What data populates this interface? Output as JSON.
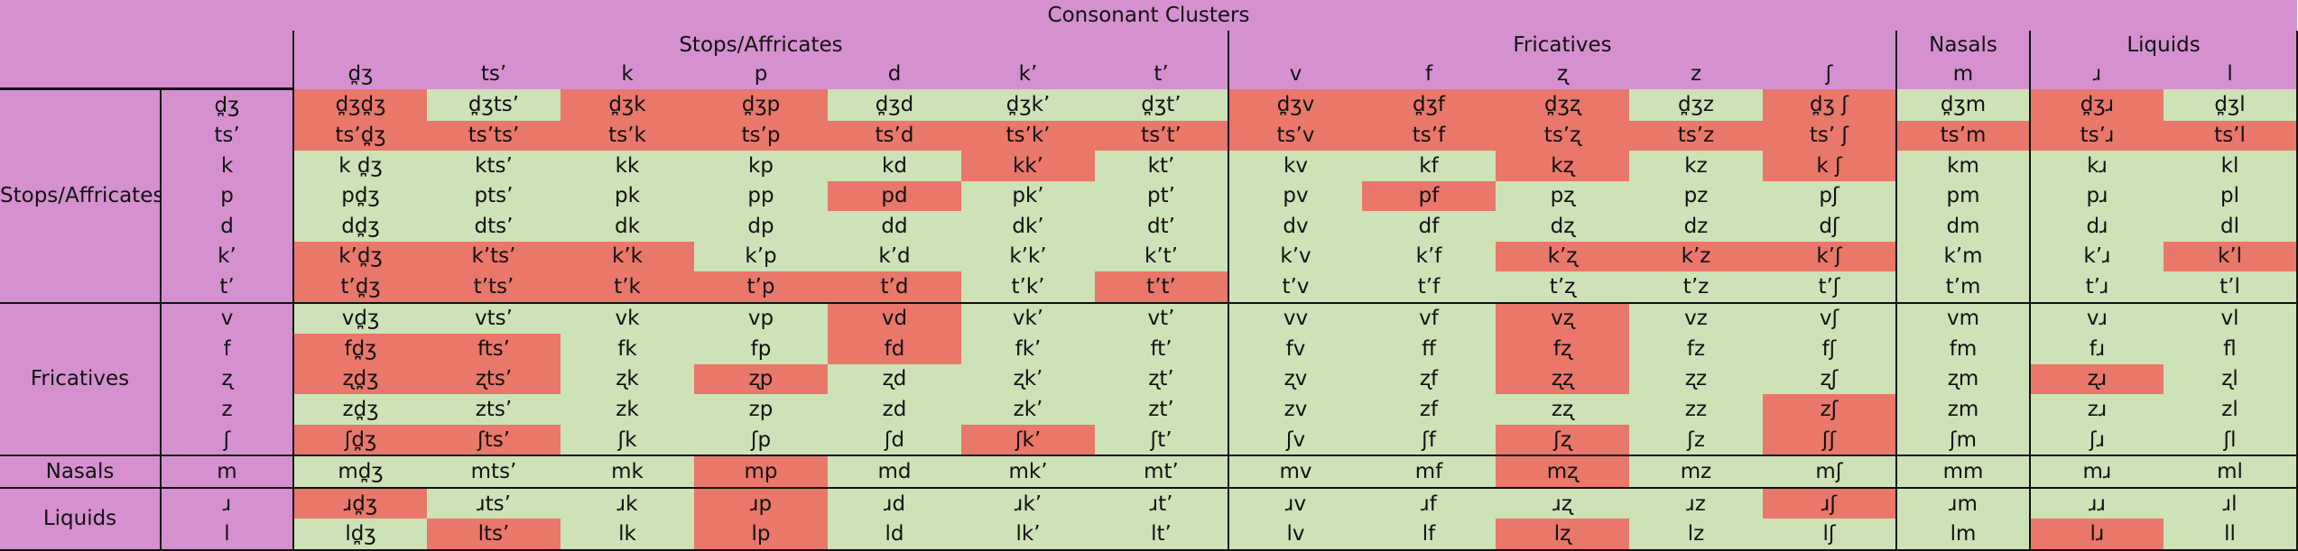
{
  "title": "Consonant Clusters",
  "col_groups": [
    {
      "label": "Stops/Affricates",
      "span": 7
    },
    {
      "label": "Fricatives",
      "span": 5
    },
    {
      "label": "Nasals",
      "span": 1
    },
    {
      "label": "Liquids",
      "span": 2
    }
  ],
  "cols": [
    "d̪ʒ",
    "ts’",
    "k",
    "p",
    "d",
    "k’",
    "t’",
    "v",
    "f",
    "ʐ",
    "z",
    "ʃ",
    "m",
    "ɹ",
    "l"
  ],
  "row_groups": [
    {
      "label": "Stops/Affricates",
      "rows": [
        {
          "label": "d̪ʒ",
          "cells": [
            "d̪ʒd̪ʒ",
            "d̪ʒts’",
            "d̪ʒk",
            "d̪ʒp",
            "d̪ʒd",
            "d̪ʒk’",
            "d̪ʒt’",
            "d̪ʒv",
            "d̪ʒf",
            "d̪ʒʐ",
            "d̪ʒz",
            "d̪ʒ ʃ",
            "d̪ʒm",
            "d̪ʒɹ",
            "d̪ʒl"
          ],
          "bad": [
            1,
            0,
            1,
            1,
            0,
            0,
            0,
            1,
            1,
            1,
            0,
            1,
            0,
            1,
            0
          ]
        },
        {
          "label": "ts’",
          "cells": [
            "ts’d̪ʒ",
            "ts’ts’",
            "ts’k",
            "ts’p",
            "ts’d",
            "ts’k’",
            "ts’t’",
            "ts’v",
            "ts’f",
            "ts’ʐ",
            "ts’z",
            "ts’ ʃ",
            "ts’m",
            "ts’ɹ",
            "ts’l"
          ],
          "bad": [
            1,
            1,
            1,
            1,
            1,
            1,
            1,
            1,
            1,
            1,
            1,
            1,
            1,
            1,
            1
          ]
        },
        {
          "label": "k",
          "cells": [
            "k d̪ʒ",
            "kts’",
            "kk",
            "kp",
            "kd",
            "kk’",
            "kt’",
            "kv",
            "kf",
            "kʐ",
            "kz",
            "k ʃ",
            "km",
            "kɹ",
            "kl"
          ],
          "bad": [
            0,
            0,
            0,
            0,
            0,
            1,
            0,
            0,
            0,
            1,
            0,
            1,
            0,
            0,
            0
          ]
        },
        {
          "label": "p",
          "cells": [
            "pd̪ʒ",
            "pts’",
            "pk",
            "pp",
            "pd",
            "pk’",
            "pt’",
            "pv",
            "pf",
            "pʐ",
            "pz",
            "pʃ",
            "pm",
            "pɹ",
            "pl"
          ],
          "bad": [
            0,
            0,
            0,
            0,
            1,
            0,
            0,
            0,
            1,
            0,
            0,
            0,
            0,
            0,
            0
          ]
        },
        {
          "label": "d",
          "cells": [
            "dd̪ʒ",
            "dts’",
            "dk",
            "dp",
            "dd",
            "dk’",
            "dt’",
            "dv",
            "df",
            "dʐ",
            "dz",
            "dʃ",
            "dm",
            "dɹ",
            "dl"
          ],
          "bad": [
            0,
            0,
            0,
            0,
            0,
            0,
            0,
            0,
            0,
            0,
            0,
            0,
            0,
            0,
            0
          ]
        },
        {
          "label": "k’",
          "cells": [
            "k’d̪ʒ",
            "k’ts’",
            "k’k",
            "k’p",
            "k’d",
            "k’k’",
            "k’t’",
            "k’v",
            "k’f",
            "k’ʐ",
            "k’z",
            "k’ʃ",
            "k’m",
            "k’ɹ",
            "k’l"
          ],
          "bad": [
            1,
            1,
            1,
            0,
            0,
            0,
            0,
            0,
            0,
            1,
            1,
            1,
            0,
            0,
            1
          ]
        },
        {
          "label": "t’",
          "cells": [
            "t’d̪ʒ",
            "t’ts’",
            "t’k",
            "t’p",
            "t’d",
            "t’k’",
            "t’t’",
            "t’v",
            "t’f",
            "t’ʐ",
            "t’z",
            "t’ʃ",
            "t’m",
            "t’ɹ",
            "t’l"
          ],
          "bad": [
            1,
            1,
            1,
            1,
            1,
            0,
            1,
            0,
            0,
            0,
            0,
            0,
            0,
            0,
            0
          ]
        }
      ]
    },
    {
      "label": "Fricatives",
      "rows": [
        {
          "label": "v",
          "cells": [
            "vd̪ʒ",
            "vts’",
            "vk",
            "vp",
            "vd",
            "vk’",
            "vt’",
            "vv",
            "vf",
            "vʐ",
            "vz",
            "vʃ",
            "vm",
            "vɹ",
            "vl"
          ],
          "bad": [
            0,
            0,
            0,
            0,
            1,
            0,
            0,
            0,
            0,
            1,
            0,
            0,
            0,
            0,
            0
          ]
        },
        {
          "label": "f",
          "cells": [
            "fd̪ʒ",
            "fts’",
            "fk",
            "fp",
            "fd",
            "fk’",
            "ft’",
            "fv",
            "ff",
            "fʐ",
            "fz",
            "fʃ",
            "fm",
            "fɹ",
            "fl"
          ],
          "bad": [
            1,
            1,
            0,
            0,
            1,
            0,
            0,
            0,
            0,
            1,
            0,
            0,
            0,
            0,
            0
          ]
        },
        {
          "label": "ʐ",
          "cells": [
            "ʐd̪ʒ",
            "ʐts’",
            "ʐk",
            "ʐp",
            "ʐd",
            "ʐk’",
            "ʐt’",
            "ʐv",
            "ʐf",
            "ʐʐ",
            "ʐz",
            "ʐʃ",
            "ʐm",
            "ʐɹ",
            "ʐl"
          ],
          "bad": [
            1,
            1,
            0,
            1,
            0,
            0,
            0,
            0,
            0,
            1,
            0,
            0,
            0,
            1,
            0
          ]
        },
        {
          "label": "z",
          "cells": [
            "zd̪ʒ",
            "zts’",
            "zk",
            "zp",
            "zd",
            "zk’",
            "zt’",
            "zv",
            "zf",
            "zʐ",
            "zz",
            "zʃ",
            "zm",
            "zɹ",
            "zl"
          ],
          "bad": [
            0,
            0,
            0,
            0,
            0,
            0,
            0,
            0,
            0,
            0,
            0,
            1,
            0,
            0,
            0
          ]
        },
        {
          "label": "ʃ",
          "cells": [
            "ʃd̪ʒ",
            "ʃts’",
            "ʃk",
            "ʃp",
            "ʃd",
            "ʃk’",
            "ʃt’",
            "ʃv",
            "ʃf",
            "ʃʐ",
            "ʃz",
            "ʃʃ",
            "ʃm",
            "ʃɹ",
            "ʃl"
          ],
          "bad": [
            1,
            1,
            0,
            0,
            0,
            1,
            0,
            0,
            0,
            1,
            0,
            1,
            0,
            0,
            0
          ]
        }
      ]
    },
    {
      "label": "Nasals",
      "rows": [
        {
          "label": "m",
          "cells": [
            "md̪ʒ",
            "mts’",
            "mk",
            "mp",
            "md",
            "mk’",
            "mt’",
            "mv",
            "mf",
            "mʐ",
            "mz",
            "mʃ",
            "mm",
            "mɹ",
            "ml"
          ],
          "bad": [
            0,
            0,
            0,
            1,
            0,
            0,
            0,
            0,
            0,
            1,
            0,
            0,
            0,
            0,
            0
          ]
        }
      ]
    },
    {
      "label": "Liquids",
      "rows": [
        {
          "label": "ɹ",
          "cells": [
            "ɹd̪ʒ",
            "ɹts’",
            "ɹk",
            "ɹp",
            "ɹd",
            "ɹk’",
            "ɹt’",
            "ɹv",
            "ɹf",
            "ɹʐ",
            "ɹz",
            "ɹʃ",
            "ɹm",
            "ɹɹ",
            "ɹl"
          ],
          "bad": [
            1,
            0,
            0,
            1,
            0,
            0,
            0,
            0,
            0,
            0,
            0,
            1,
            0,
            0,
            0
          ]
        },
        {
          "label": "l",
          "cells": [
            "ld̪ʒ",
            "lts’",
            "lk",
            "lp",
            "ld",
            "lk’",
            "lt’",
            "lv",
            "lf",
            "lʐ",
            "lz",
            "lʃ",
            "lm",
            "lɹ",
            "ll"
          ],
          "bad": [
            0,
            1,
            0,
            1,
            0,
            0,
            0,
            0,
            0,
            1,
            0,
            0,
            0,
            1,
            0
          ]
        }
      ]
    }
  ],
  "colors": {
    "header": "#d591cf",
    "allowed": "#cde2b7",
    "disallowed": "#e9776a",
    "grid_line": "#111111"
  }
}
